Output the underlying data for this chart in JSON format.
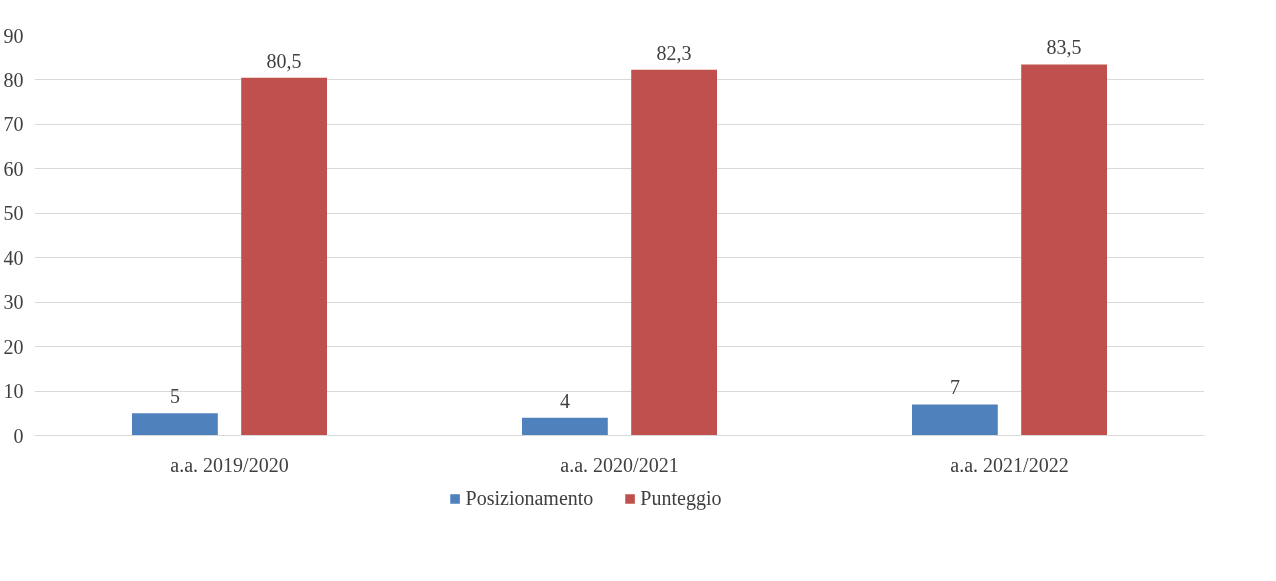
{
  "chart_data": {
    "type": "bar",
    "categories": [
      "a.a. 2019/2020",
      "a.a. 2020/2021",
      "a.a. 2021/2022"
    ],
    "series": [
      {
        "name": "Posizionamento",
        "color": "#4f81bd",
        "values": [
          5,
          4,
          7
        ],
        "value_labels": [
          "5",
          "4",
          "7"
        ]
      },
      {
        "name": "Punteggio",
        "color": "#c0504d",
        "values": [
          80.5,
          82.3,
          83.5
        ],
        "value_labels": [
          "80,5",
          "82,3",
          "83,5"
        ]
      }
    ],
    "ylim": [
      0,
      90
    ],
    "yticks": [
      0,
      10,
      20,
      30,
      40,
      50,
      60,
      70,
      80,
      90
    ],
    "grid": "y",
    "legend": "bottom"
  }
}
